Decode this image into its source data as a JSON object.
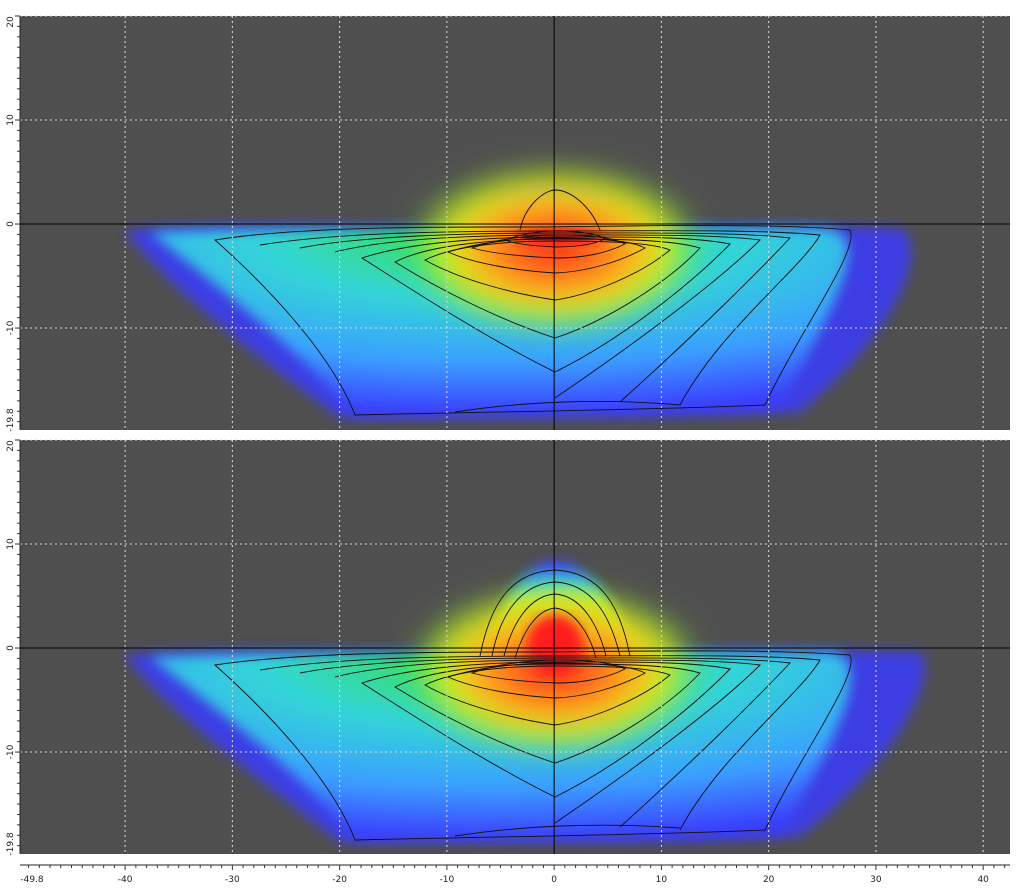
{
  "figure": {
    "description_panels": [
      "upper-panel",
      "lower-panel"
    ]
  },
  "chart_data": [
    {
      "type": "heatmap",
      "panel": "upper",
      "title": "",
      "xlabel": "",
      "ylabel": "",
      "xlim": [
        -49.8,
        42.5
      ],
      "ylim": [
        -19.8,
        20
      ],
      "x_ticks": [
        -49.8,
        -40,
        -30,
        -20,
        -10,
        0,
        10,
        20,
        30,
        40
      ],
      "x_tick_labels": [],
      "y_ticks": [
        20,
        10,
        0,
        -10,
        -19.8
      ],
      "y_tick_labels": [
        "20",
        "10",
        "0",
        "-10",
        "-19.8"
      ],
      "grid": true,
      "colormap": [
        "#3b3bff",
        "#3aa0ff",
        "#33d6d6",
        "#39e23a",
        "#d6f31a",
        "#ffa51a",
        "#ff1a1a"
      ],
      "background": "#4f4f4f",
      "peak": {
        "x": 1,
        "y": -0.8
      },
      "features": {
        "lobe_top_y": 4,
        "main_body_x_range": [
          -40,
          35
        ],
        "main_body_y_range": [
          -17.5,
          0
        ]
      },
      "contour_levels": 10
    },
    {
      "type": "heatmap",
      "panel": "lower",
      "title": "",
      "xlabel": "",
      "ylabel": "",
      "xlim": [
        -49.8,
        42.5
      ],
      "ylim": [
        -19.8,
        20
      ],
      "x_ticks": [
        -49.8,
        -40,
        -30,
        -20,
        -10,
        0,
        10,
        20,
        30,
        40
      ],
      "x_tick_labels": [
        "-49.8",
        "-40",
        "-30",
        "-20",
        "-10",
        "0",
        "10",
        "20",
        "30",
        "40"
      ],
      "y_ticks": [
        20,
        10,
        0,
        -10,
        -19.8
      ],
      "y_tick_labels": [
        "20",
        "10",
        "0",
        "-10",
        "-19.8"
      ],
      "grid": true,
      "colormap": [
        "#3b3bff",
        "#3aa0ff",
        "#33d6d6",
        "#39e23a",
        "#d6f31a",
        "#ffa51a",
        "#ff1a1a"
      ],
      "background": "#4f4f4f",
      "peak": {
        "x": 0.5,
        "y": 0
      },
      "features": {
        "lobe_top_y": 9,
        "main_body_x_range": [
          -40,
          35
        ],
        "main_body_y_range": [
          -17.5,
          0
        ]
      },
      "contour_levels": 10
    }
  ]
}
